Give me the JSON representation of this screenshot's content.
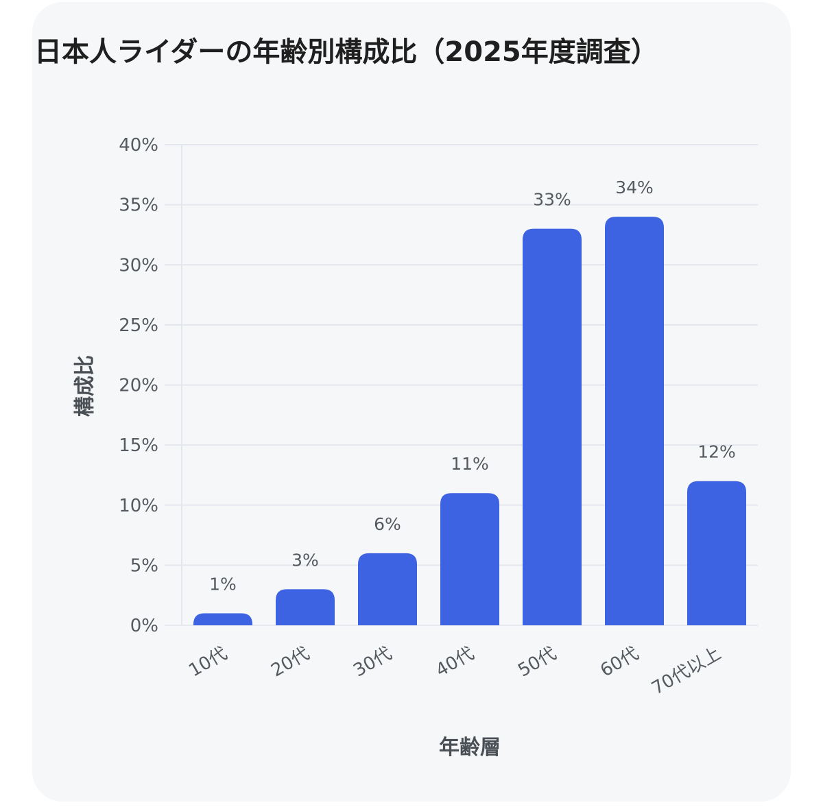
{
  "chart_data": {
    "type": "bar",
    "title": "日本人ライダーの年齢別構成比（2025年度調査）",
    "xlabel": "年齢層",
    "ylabel": "構成比",
    "categories": [
      "10代",
      "20代",
      "30代",
      "40代",
      "50代",
      "60代",
      "70代以上"
    ],
    "values": [
      1,
      3,
      6,
      11,
      33,
      34,
      12
    ],
    "data_labels": [
      "1%",
      "3%",
      "6%",
      "11%",
      "33%",
      "34%",
      "12%"
    ],
    "ylim": [
      0,
      40
    ],
    "yticks": [
      0,
      5,
      10,
      15,
      20,
      25,
      30,
      35,
      40
    ],
    "ytick_labels": [
      "0%",
      "5%",
      "10%",
      "15%",
      "20%",
      "25%",
      "30%",
      "35%",
      "40%"
    ],
    "grid": true,
    "bar_color": "#3d63e3",
    "grid_color": "#e5e7ef"
  }
}
